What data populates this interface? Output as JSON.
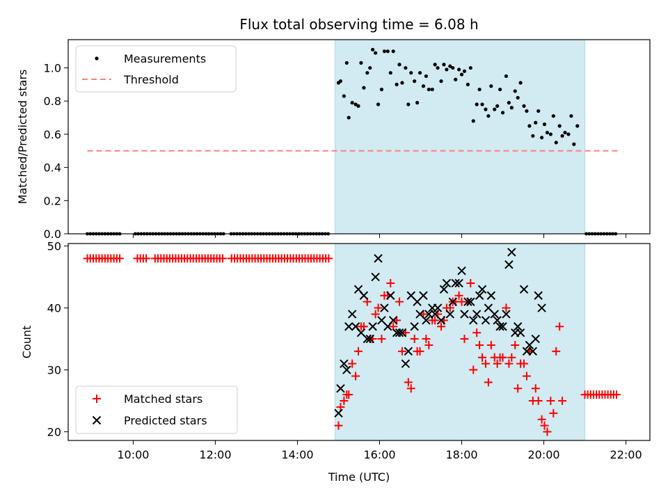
{
  "title": "Flux total observing time = 6.08 h",
  "colors": {
    "shade": "#add8e6",
    "threshold": "#ff7f7f",
    "measurements": "#000000",
    "matched": "#ff0000",
    "predicted": "#000000"
  },
  "chart_data": [
    {
      "type": "scatter",
      "ylabel": "Matched/Predicted stars",
      "ylim": [
        0,
        1.17
      ],
      "yticks": [
        "0.0",
        "0.2",
        "0.4",
        "0.6",
        "0.8",
        "1.0"
      ],
      "legend_position": "upper-left",
      "shaded_span": [
        "14:55",
        "21:00"
      ],
      "series": [
        {
          "name": "Measurements",
          "points": [
            [
              "15:00",
              0.91
            ],
            [
              "15:03",
              0.92
            ],
            [
              "15:08",
              0.83
            ],
            [
              "15:12",
              1.03
            ],
            [
              "15:15",
              0.7
            ],
            [
              "15:20",
              0.79
            ],
            [
              "15:25",
              0.78
            ],
            [
              "15:29",
              0.77
            ],
            [
              "15:33",
              1.03
            ],
            [
              "15:37",
              0.88
            ],
            [
              "15:42",
              0.97
            ],
            [
              "15:46",
              1.0
            ],
            [
              "15:50",
              1.11
            ],
            [
              "15:54",
              1.09
            ],
            [
              "15:58",
              0.78
            ],
            [
              "16:03",
              0.87
            ],
            [
              "16:07",
              1.1
            ],
            [
              "16:12",
              1.1
            ],
            [
              "16:16",
              0.97
            ],
            [
              "16:20",
              1.1
            ],
            [
              "16:25",
              0.9
            ],
            [
              "16:29",
              1.02
            ],
            [
              "16:33",
              0.91
            ],
            [
              "16:38",
              1.0
            ],
            [
              "16:42",
              0.78
            ],
            [
              "16:46",
              0.97
            ],
            [
              "16:51",
              0.92
            ],
            [
              "16:55",
              0.79
            ],
            [
              "16:59",
              0.97
            ],
            [
              "17:04",
              0.89
            ],
            [
              "17:08",
              0.95
            ],
            [
              "17:12",
              0.87
            ],
            [
              "17:17",
              0.87
            ],
            [
              "17:21",
              1.02
            ],
            [
              "17:25",
              1.0
            ],
            [
              "17:30",
              0.92
            ],
            [
              "17:34",
              1.02
            ],
            [
              "17:38",
              0.99
            ],
            [
              "17:43",
              1.01
            ],
            [
              "17:47",
              1.0
            ],
            [
              "17:51",
              0.93
            ],
            [
              "17:56",
              0.99
            ],
            [
              "18:00",
              0.96
            ],
            [
              "18:04",
              0.98
            ],
            [
              "18:09",
              0.9
            ],
            [
              "18:13",
              1.0
            ],
            [
              "18:17",
              0.68
            ],
            [
              "18:22",
              0.78
            ],
            [
              "18:26",
              0.87
            ],
            [
              "18:30",
              0.78
            ],
            [
              "18:35",
              0.75
            ],
            [
              "18:39",
              0.71
            ],
            [
              "18:43",
              0.89
            ],
            [
              "18:48",
              0.75
            ],
            [
              "18:52",
              0.77
            ],
            [
              "18:56",
              0.87
            ],
            [
              "19:00",
              0.73
            ],
            [
              "19:05",
              0.95
            ],
            [
              "19:09",
              0.79
            ],
            [
              "19:13",
              0.76
            ],
            [
              "19:18",
              0.86
            ],
            [
              "19:22",
              0.82
            ],
            [
              "19:26",
              0.91
            ],
            [
              "19:31",
              0.77
            ],
            [
              "19:35",
              0.74
            ],
            [
              "19:39",
              0.65
            ],
            [
              "19:44",
              0.59
            ],
            [
              "19:48",
              0.67
            ],
            [
              "19:52",
              0.74
            ],
            [
              "19:57",
              0.58
            ],
            [
              "20:01",
              0.66
            ],
            [
              "20:05",
              0.61
            ],
            [
              "20:10",
              0.6
            ],
            [
              "20:14",
              0.71
            ],
            [
              "20:18",
              0.55
            ],
            [
              "20:23",
              0.65
            ],
            [
              "20:27",
              0.59
            ],
            [
              "20:31",
              0.61
            ],
            [
              "20:36",
              0.6
            ],
            [
              "20:40",
              0.71
            ],
            [
              "20:44",
              0.54
            ],
            [
              "20:49",
              0.65
            ]
          ],
          "zero_ranges": [
            [
              "08:53",
              "09:43"
            ],
            [
              "10:03",
              "12:13"
            ],
            [
              "12:23",
              "14:49"
            ],
            [
              "21:02",
              "21:48"
            ]
          ]
        },
        {
          "name": "Threshold",
          "style": "dashed",
          "points": [
            [
              "08:53",
              0.5
            ],
            [
              "21:48",
              0.5
            ]
          ]
        }
      ]
    },
    {
      "type": "scatter",
      "ylabel": "Count",
      "xlabel": "Time (UTC)",
      "xlim": [
        "08:25",
        "22:35"
      ],
      "xticks": [
        "10:00",
        "12:00",
        "14:00",
        "16:00",
        "18:00",
        "20:00",
        "22:00"
      ],
      "ylim": [
        18.6,
        50.4
      ],
      "yticks": [
        "20",
        "30",
        "40",
        "50"
      ],
      "legend_position": "lower-left",
      "shaded_span": [
        "14:55",
        "21:00"
      ],
      "series": [
        {
          "name": "Matched stars",
          "marker": "+",
          "constant_runs": [
            {
              "from": "08:53",
              "to": "14:49",
              "value": 48,
              "gaps": [
                [
                  "09:43",
                  "10:03"
                ],
                [
                  "10:20",
                  "10:30"
                ],
                [
                  "12:13",
                  "12:23"
                ]
              ]
            },
            {
              "from": "21:00",
              "to": "21:50",
              "value": 26
            }
          ],
          "points": [
            [
              "15:00",
              21
            ],
            [
              "15:03",
              24
            ],
            [
              "15:08",
              25
            ],
            [
              "15:12",
              26
            ],
            [
              "15:15",
              26
            ],
            [
              "15:20",
              31
            ],
            [
              "15:25",
              29
            ],
            [
              "15:29",
              33
            ],
            [
              "15:33",
              37
            ],
            [
              "15:37",
              37
            ],
            [
              "15:42",
              41
            ],
            [
              "15:46",
              35
            ],
            [
              "15:50",
              35
            ],
            [
              "15:54",
              39
            ],
            [
              "15:58",
              40
            ],
            [
              "16:03",
              35
            ],
            [
              "16:07",
              42
            ],
            [
              "16:12",
              42
            ],
            [
              "16:16",
              44
            ],
            [
              "16:20",
              37
            ],
            [
              "16:25",
              38
            ],
            [
              "16:29",
              41
            ],
            [
              "16:33",
              33
            ],
            [
              "16:38",
              36
            ],
            [
              "16:42",
              28
            ],
            [
              "16:46",
              27
            ],
            [
              "16:51",
              35
            ],
            [
              "16:55",
              33
            ],
            [
              "16:59",
              33
            ],
            [
              "17:04",
              39
            ],
            [
              "17:08",
              35
            ],
            [
              "17:12",
              34
            ],
            [
              "17:17",
              38
            ],
            [
              "17:21",
              38
            ],
            [
              "17:25",
              39
            ],
            [
              "17:30",
              37
            ],
            [
              "17:34",
              38
            ],
            [
              "17:38",
              40
            ],
            [
              "17:43",
              40
            ],
            [
              "17:47",
              41
            ],
            [
              "17:51",
              41
            ],
            [
              "17:56",
              42
            ],
            [
              "18:00",
              41
            ],
            [
              "18:04",
              35
            ],
            [
              "18:09",
              41
            ],
            [
              "18:13",
              44
            ],
            [
              "18:17",
              30
            ],
            [
              "18:22",
              36
            ],
            [
              "18:26",
              34
            ],
            [
              "18:30",
              32
            ],
            [
              "18:35",
              31
            ],
            [
              "18:39",
              28
            ],
            [
              "18:43",
              34
            ],
            [
              "18:48",
              32
            ],
            [
              "18:52",
              31
            ],
            [
              "18:56",
              32
            ],
            [
              "19:00",
              32
            ],
            [
              "19:05",
              40
            ],
            [
              "19:09",
              31
            ],
            [
              "19:13",
              32
            ],
            [
              "19:18",
              34
            ],
            [
              "19:22",
              27
            ],
            [
              "19:26",
              31
            ],
            [
              "19:31",
              31
            ],
            [
              "19:35",
              29
            ],
            [
              "19:39",
              33
            ],
            [
              "19:44",
              25
            ],
            [
              "19:48",
              27
            ],
            [
              "19:52",
              25
            ],
            [
              "19:57",
              22
            ],
            [
              "20:01",
              21
            ],
            [
              "20:05",
              20
            ],
            [
              "20:10",
              25
            ],
            [
              "20:14",
              23
            ],
            [
              "20:18",
              33
            ],
            [
              "20:23",
              37
            ],
            [
              "20:27",
              25
            ]
          ]
        },
        {
          "name": "Predicted stars",
          "marker": "x",
          "points": [
            [
              "15:00",
              23
            ],
            [
              "15:03",
              27
            ],
            [
              "15:08",
              31
            ],
            [
              "15:12",
              30
            ],
            [
              "15:15",
              37
            ],
            [
              "15:20",
              39
            ],
            [
              "15:25",
              37
            ],
            [
              "15:29",
              43
            ],
            [
              "15:33",
              36
            ],
            [
              "15:37",
              42
            ],
            [
              "15:42",
              35
            ],
            [
              "15:46",
              35
            ],
            [
              "15:50",
              37
            ],
            [
              "15:54",
              45
            ],
            [
              "15:58",
              48
            ],
            [
              "16:03",
              38
            ],
            [
              "16:07",
              40
            ],
            [
              "16:12",
              37
            ],
            [
              "16:16",
              42
            ],
            [
              "16:20",
              38
            ],
            [
              "16:25",
              36
            ],
            [
              "16:29",
              36
            ],
            [
              "16:33",
              36
            ],
            [
              "16:38",
              31
            ],
            [
              "16:42",
              33
            ],
            [
              "16:46",
              42
            ],
            [
              "16:51",
              37
            ],
            [
              "16:55",
              41
            ],
            [
              "16:59",
              39
            ],
            [
              "17:04",
              42
            ],
            [
              "17:08",
              38
            ],
            [
              "17:12",
              39
            ],
            [
              "17:17",
              40
            ],
            [
              "17:21",
              39
            ],
            [
              "17:25",
              40
            ],
            [
              "17:30",
              38
            ],
            [
              "17:34",
              43
            ],
            [
              "17:38",
              44
            ],
            [
              "17:43",
              39
            ],
            [
              "17:47",
              41
            ],
            [
              "17:51",
              44
            ],
            [
              "17:56",
              44
            ],
            [
              "18:00",
              46
            ],
            [
              "18:04",
              39
            ],
            [
              "18:09",
              41
            ],
            [
              "18:13",
              41
            ],
            [
              "18:17",
              38
            ],
            [
              "18:22",
              39
            ],
            [
              "18:26",
              42
            ],
            [
              "18:30",
              43
            ],
            [
              "18:35",
              38
            ],
            [
              "18:39",
              40
            ],
            [
              "18:43",
              42
            ],
            [
              "18:48",
              39
            ],
            [
              "18:52",
              38
            ],
            [
              "18:56",
              37
            ],
            [
              "19:00",
              37
            ],
            [
              "19:05",
              39
            ],
            [
              "19:09",
              47
            ],
            [
              "19:13",
              49
            ],
            [
              "19:18",
              36
            ],
            [
              "19:22",
              37
            ],
            [
              "19:26",
              36
            ],
            [
              "19:31",
              43
            ],
            [
              "19:35",
              33
            ],
            [
              "19:39",
              34
            ],
            [
              "19:44",
              33
            ],
            [
              "19:48",
              35
            ],
            [
              "19:52",
              42
            ],
            [
              "19:57",
              40
            ]
          ]
        }
      ]
    }
  ]
}
